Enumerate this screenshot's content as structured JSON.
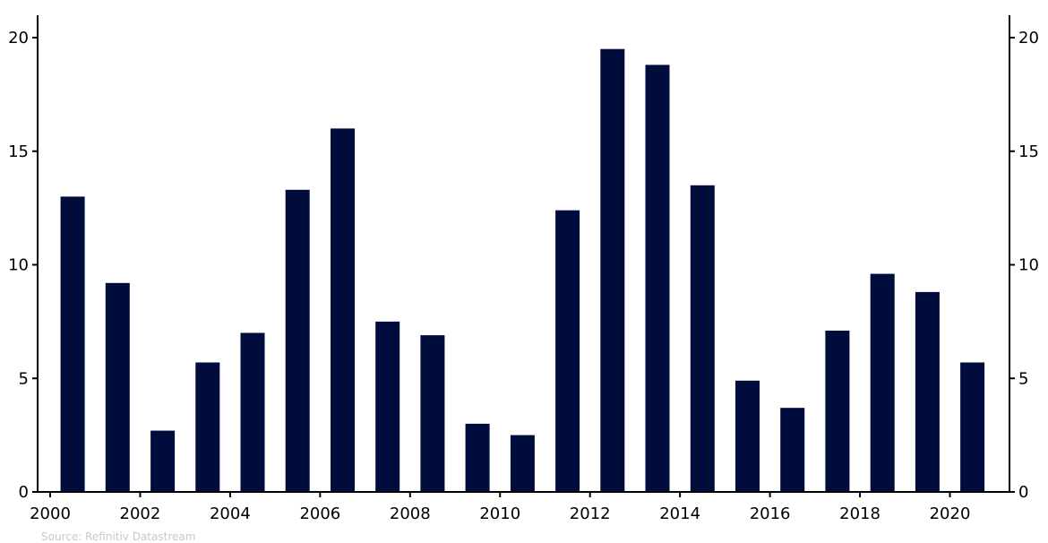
{
  "chart_data": {
    "type": "bar",
    "categories": [
      "2000",
      "2001",
      "2002",
      "2003",
      "2004",
      "2005",
      "2006",
      "2007",
      "2008",
      "2009",
      "2010",
      "2011",
      "2012",
      "2013",
      "2014",
      "2015",
      "2016",
      "2017",
      "2018",
      "2019",
      "2020"
    ],
    "values": [
      13.0,
      9.2,
      2.7,
      5.7,
      7.0,
      13.3,
      16.0,
      7.5,
      6.9,
      3.0,
      2.5,
      12.4,
      19.5,
      18.8,
      13.5,
      4.9,
      3.7,
      7.1,
      9.6,
      8.8,
      5.7
    ],
    "x_tick_labels": [
      "2000",
      "2002",
      "2004",
      "2006",
      "2008",
      "2010",
      "2012",
      "2014",
      "2016",
      "2018",
      "2020"
    ],
    "y_ticks": [
      0,
      5,
      10,
      15,
      20
    ],
    "ylim": [
      0,
      21
    ],
    "title": "",
    "xlabel": "",
    "ylabel": "",
    "bar_color": "#000c3c",
    "grid": false,
    "legend": "none",
    "dual_y_axis": true
  },
  "source": "Source: Refinitiv Datastream"
}
